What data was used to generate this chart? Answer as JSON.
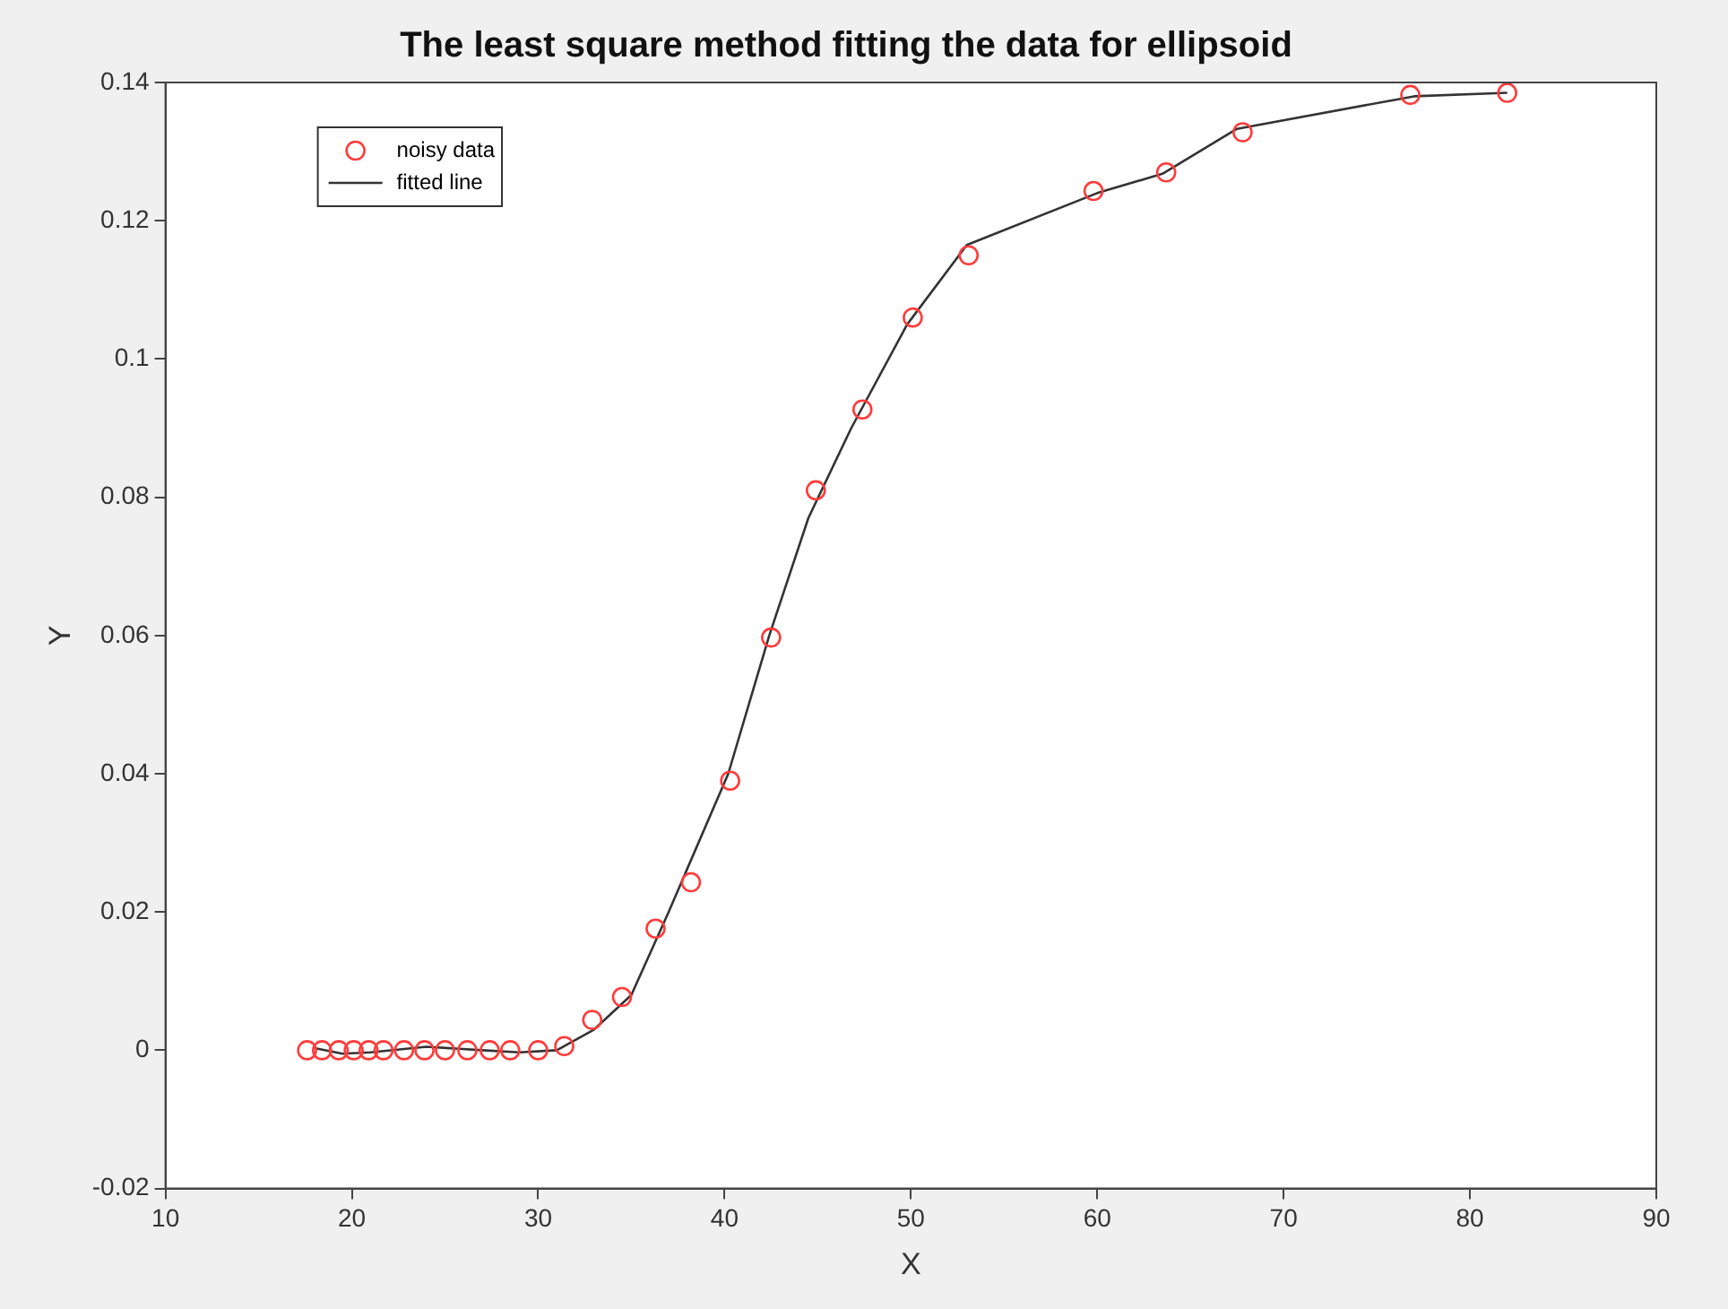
{
  "chart_data": {
    "type": "scatter",
    "title": "The least square method fitting the data for ellipsoid",
    "xlabel": "X",
    "ylabel": "Y",
    "xlim": [
      10,
      90
    ],
    "xticks": [
      10,
      20,
      30,
      40,
      50,
      60,
      70,
      80,
      90
    ],
    "ylim": [
      -0.02,
      0.14
    ],
    "yticks": [
      -0.02,
      0,
      0.02,
      0.04,
      0.06,
      0.08,
      0.1,
      0.12,
      0.14
    ],
    "grid": false,
    "legend": "top left",
    "series": [
      {
        "name": "noisy data",
        "marker": "circle",
        "color": "#ff3b3b",
        "x": [
          17.6,
          18.4,
          19.3,
          20.1,
          20.9,
          21.7,
          22.8,
          23.9,
          25,
          26.2,
          27.4,
          28.5,
          30,
          31.4,
          32.9,
          34.5,
          36.3,
          38.2,
          40.3,
          42.5,
          44.9,
          47.4,
          50.1,
          53.1,
          59.8,
          63.7,
          67.8,
          76.8,
          82
        ],
        "values": [
          0,
          0,
          0,
          0,
          0,
          0,
          0,
          0,
          0,
          0,
          0,
          0,
          0,
          0.0006,
          0.0044,
          0.0077,
          0.0176,
          0.0243,
          0.039,
          0.0597,
          0.081,
          0.0927,
          0.106,
          0.115,
          0.1243,
          0.127,
          0.1328,
          0.1382,
          0.1385
        ]
      },
      {
        "name": "fitted line",
        "type": "line",
        "marker": "none",
        "line_style": "solid",
        "color": "#333333",
        "x": [
          18,
          19.5,
          21,
          24,
          27,
          29,
          31,
          33,
          35,
          37,
          40.2,
          42.4,
          44.5,
          46.8,
          49.8,
          53,
          60,
          63.5,
          67.5,
          77,
          82
        ],
        "values": [
          0.0003,
          -0.0005,
          -0.0003,
          0.0005,
          0,
          -0.0003,
          0,
          0.003,
          0.008,
          0.02,
          0.04,
          0.06,
          0.077,
          0.09,
          0.105,
          0.1165,
          0.124,
          0.1268,
          0.1333,
          0.138,
          0.1385
        ]
      }
    ]
  }
}
